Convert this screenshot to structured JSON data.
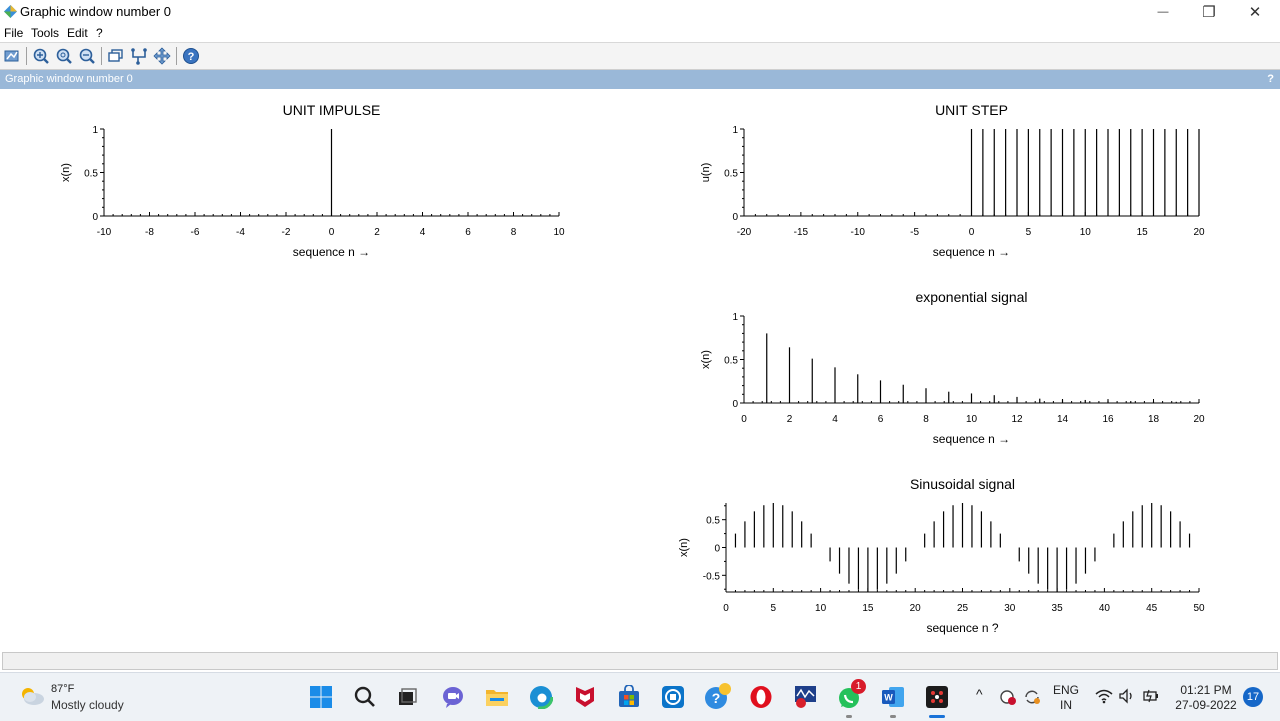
{
  "window": {
    "title": "Graphic window number 0",
    "minimize_glyph": "—",
    "maximize_glyph": "❐",
    "close_glyph": "✕"
  },
  "menu": {
    "items": [
      "File",
      "Tools",
      "Edit",
      "?"
    ]
  },
  "toolbar": {
    "icons": [
      "datatip-icon",
      "zoom-in-icon",
      "zoom-reset-icon",
      "zoom-out-icon",
      "rotate-3d-icon",
      "edit-figure-icon",
      "pan-icon",
      "help-icon"
    ]
  },
  "panel": {
    "title": "Graphic window number 0",
    "help": "?"
  },
  "chart_data": [
    {
      "type": "stem",
      "title": "UNIT IMPULSE",
      "xlabel": "sequence n →",
      "ylabel": "x(n)",
      "xlim": [
        -10,
        10
      ],
      "ylim": [
        0,
        1
      ],
      "xticks": [
        "-10",
        "-8",
        "-6",
        "-4",
        "-2",
        "0",
        "2",
        "4",
        "6",
        "8",
        "10"
      ],
      "yticks": [
        "0",
        "0.5",
        "1"
      ],
      "x": [
        -10,
        -9,
        -8,
        -7,
        -6,
        -5,
        -4,
        -3,
        -2,
        -1,
        0,
        1,
        2,
        3,
        4,
        5,
        6,
        7,
        8,
        9,
        10
      ],
      "y": [
        0,
        0,
        0,
        0,
        0,
        0,
        0,
        0,
        0,
        0,
        1,
        0,
        0,
        0,
        0,
        0,
        0,
        0,
        0,
        0,
        0
      ]
    },
    {
      "type": "stem",
      "title": "UNIT STEP",
      "xlabel": "sequence n →",
      "ylabel": "u(n)",
      "xlim": [
        -20,
        20
      ],
      "ylim": [
        0,
        1
      ],
      "xticks": [
        "-20",
        "-15",
        "-10",
        "-5",
        "0",
        "5",
        "10",
        "15",
        "20"
      ],
      "yticks": [
        "0",
        "0.5",
        "1"
      ],
      "x": [
        -20,
        -19,
        -18,
        -17,
        -16,
        -15,
        -14,
        -13,
        -12,
        -11,
        -10,
        -9,
        -8,
        -7,
        -6,
        -5,
        -4,
        -3,
        -2,
        -1,
        0,
        1,
        2,
        3,
        4,
        5,
        6,
        7,
        8,
        9,
        10,
        11,
        12,
        13,
        14,
        15,
        16,
        17,
        18,
        19,
        20
      ],
      "y": [
        0,
        0,
        0,
        0,
        0,
        0,
        0,
        0,
        0,
        0,
        0,
        0,
        0,
        0,
        0,
        0,
        0,
        0,
        0,
        0,
        1,
        1,
        1,
        1,
        1,
        1,
        1,
        1,
        1,
        1,
        1,
        1,
        1,
        1,
        1,
        1,
        1,
        1,
        1,
        1,
        1
      ]
    },
    {
      "type": "stem",
      "title": "exponential signal",
      "xlabel": "sequence n →",
      "ylabel": "x(n)",
      "xlim": [
        0,
        20
      ],
      "ylim": [
        0,
        1
      ],
      "xticks": [
        "0",
        "2",
        "4",
        "6",
        "8",
        "10",
        "12",
        "14",
        "16",
        "18",
        "20"
      ],
      "yticks": [
        "0",
        "0.5",
        "1"
      ],
      "x": [
        0,
        1,
        2,
        3,
        4,
        5,
        6,
        7,
        8,
        9,
        10,
        11,
        12,
        13,
        14,
        15,
        16,
        17,
        18,
        19,
        20
      ],
      "y": [
        0,
        0.8,
        0.64,
        0.51,
        0.41,
        0.33,
        0.26,
        0.21,
        0.17,
        0.13,
        0.11,
        0.09,
        0.07,
        0.05,
        0.04,
        0.035,
        0.028,
        0.022,
        0.018,
        0.014,
        0.012
      ]
    },
    {
      "type": "stem",
      "title": "Sinusoidal signal",
      "xlabel": "sequence n ?",
      "ylabel": "x(n)",
      "xlim": [
        0,
        50
      ],
      "ylim": [
        -0.8,
        0.8
      ],
      "xticks": [
        "0",
        "5",
        "10",
        "15",
        "20",
        "25",
        "30",
        "35",
        "40",
        "45",
        "50"
      ],
      "yticks": [
        "-0.5",
        "0",
        "0.5"
      ],
      "x": [
        1,
        2,
        3,
        4,
        5,
        6,
        7,
        8,
        9,
        11,
        12,
        13,
        14,
        15,
        16,
        17,
        18,
        19,
        21,
        22,
        23,
        24,
        25,
        26,
        27,
        28,
        29,
        31,
        32,
        33,
        34,
        35,
        36,
        37,
        38,
        39,
        41,
        42,
        43,
        44,
        45,
        46,
        47,
        48,
        49
      ],
      "y": [
        0.25,
        0.47,
        0.65,
        0.76,
        0.8,
        0.76,
        0.65,
        0.47,
        0.25,
        -0.25,
        -0.47,
        -0.65,
        -0.76,
        -0.8,
        -0.76,
        -0.65,
        -0.47,
        -0.25,
        0.25,
        0.47,
        0.65,
        0.76,
        0.8,
        0.76,
        0.65,
        0.47,
        0.25,
        -0.25,
        -0.47,
        -0.65,
        -0.76,
        -0.8,
        -0.76,
        -0.65,
        -0.47,
        -0.25,
        0.25,
        0.47,
        0.65,
        0.76,
        0.8,
        0.76,
        0.65,
        0.47,
        0.25
      ]
    }
  ],
  "taskbar": {
    "weather_temp": "87°F",
    "weather_desc": "Mostly cloudy",
    "apps": [
      "windows-start-icon",
      "search-icon",
      "task-view-icon",
      "teams-chat-icon",
      "file-explorer-icon",
      "edge-browser-icon",
      "mcafee-icon",
      "microsoft-store-icon",
      "dell-support-icon",
      "get-help-icon",
      "opera-browser-icon",
      "scilab-console-icon",
      "whatsapp-icon",
      "word-icon",
      "scilab-graphics-icon"
    ],
    "whatsapp_badge": "1",
    "tray": {
      "chevron": "^",
      "lang_top": "ENG",
      "lang_bottom": "IN",
      "time": "01:21 PM",
      "date": "27-09-2022",
      "notifications": "17"
    }
  },
  "colors": {
    "panel_header": "#9ab8d8",
    "taskbar": "#eef2f6",
    "notif_badge": "#1567c8"
  }
}
